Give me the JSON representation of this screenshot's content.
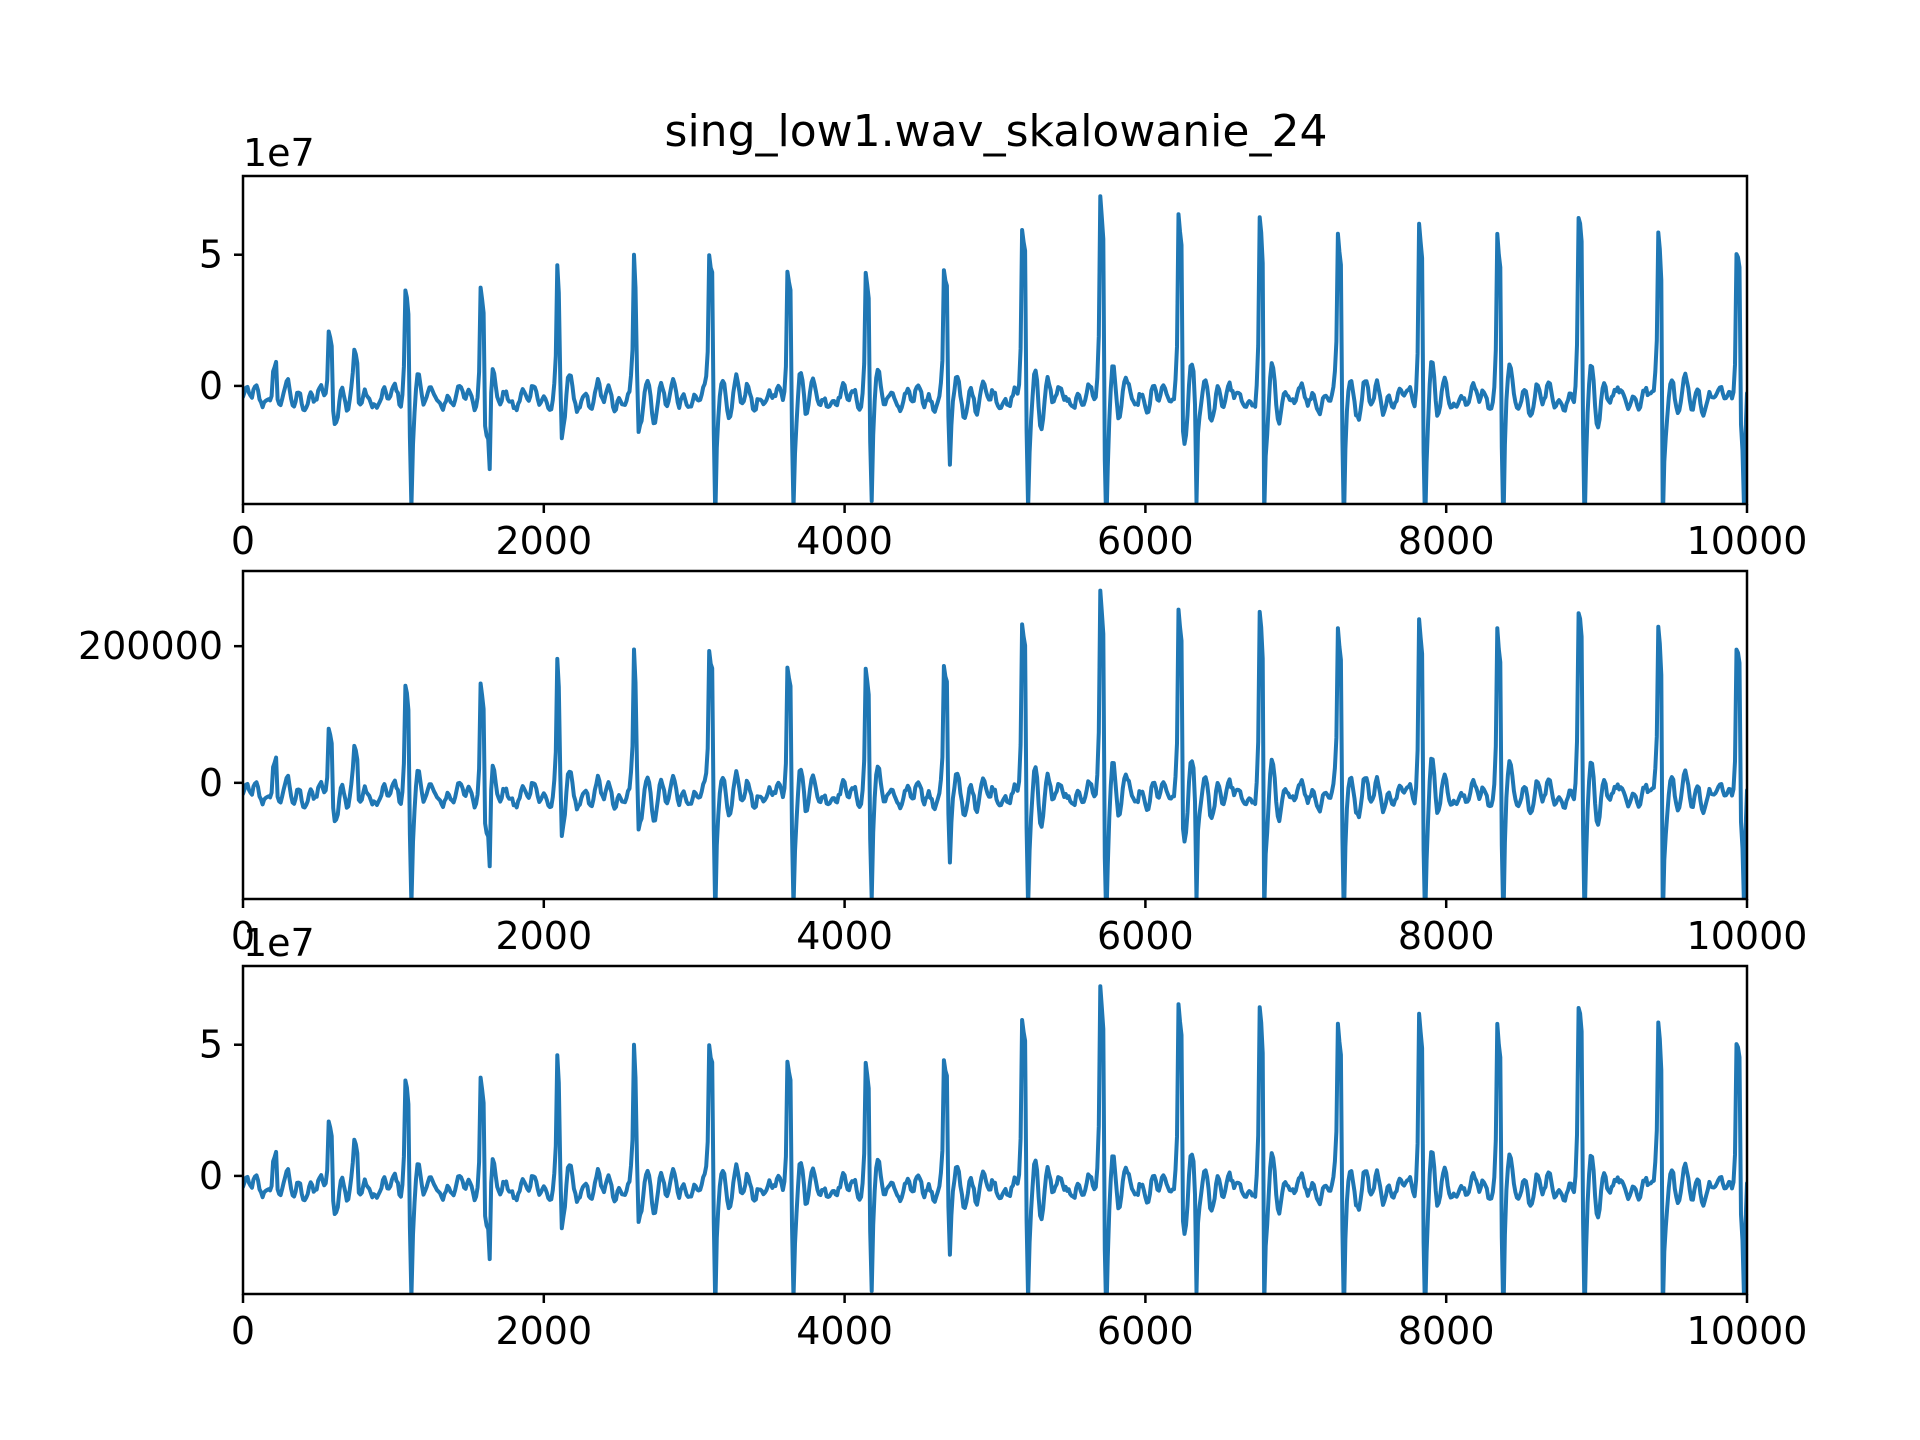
{
  "chart_data": [
    {
      "type": "line",
      "title": "sing_low1.wav_skalowanie_24",
      "offset_text": "1e7",
      "xlim": [
        0,
        10000
      ],
      "ylim": [
        -4.5,
        8.0
      ],
      "xticks": [
        0,
        2000,
        4000,
        6000,
        8000,
        10000
      ],
      "xtick_labels": [
        "0",
        "2000",
        "4000",
        "6000",
        "8000",
        "10000"
      ],
      "yticks": [
        0,
        5
      ],
      "ytick_labels": [
        "0",
        "5"
      ],
      "grid": false,
      "color": "#1f77b4",
      "peaks": [
        {
          "x": 200,
          "y": 1.5
        },
        {
          "x": 570,
          "y": 2.3
        },
        {
          "x": 740,
          "y": 1.4
        },
        {
          "x": 1080,
          "y": 4.1
        },
        {
          "x": 1580,
          "y": 4.2
        },
        {
          "x": 2090,
          "y": 5.0
        },
        {
          "x": 2600,
          "y": 5.3
        },
        {
          "x": 3100,
          "y": 5.5
        },
        {
          "x": 3620,
          "y": 4.9
        },
        {
          "x": 4140,
          "y": 4.8
        },
        {
          "x": 4660,
          "y": 4.9
        },
        {
          "x": 5180,
          "y": 6.1
        },
        {
          "x": 5700,
          "y": 7.5
        },
        {
          "x": 6220,
          "y": 7.4
        },
        {
          "x": 6760,
          "y": 6.5
        },
        {
          "x": 7280,
          "y": 6.1
        },
        {
          "x": 7820,
          "y": 6.6
        },
        {
          "x": 8340,
          "y": 6.3
        },
        {
          "x": 8880,
          "y": 6.6
        },
        {
          "x": 9410,
          "y": 6.4
        },
        {
          "x": 9930,
          "y": 6.0
        }
      ],
      "troughs": [
        {
          "x": 1120,
          "y": -2.6
        },
        {
          "x": 1640,
          "y": -2.6
        },
        {
          "x": 2110,
          "y": -3.4
        },
        {
          "x": 2620,
          "y": -3.5
        },
        {
          "x": 3140,
          "y": -3.3
        },
        {
          "x": 3660,
          "y": -2.5
        },
        {
          "x": 4180,
          "y": -2.5
        },
        {
          "x": 4700,
          "y": -1.8
        },
        {
          "x": 5220,
          "y": -2.7
        },
        {
          "x": 5740,
          "y": -3.6
        },
        {
          "x": 6340,
          "y": -3.8
        },
        {
          "x": 6790,
          "y": -3.5
        },
        {
          "x": 7320,
          "y": -3.5
        },
        {
          "x": 7860,
          "y": -3.1
        },
        {
          "x": 8380,
          "y": -3.4
        },
        {
          "x": 8920,
          "y": -3.3
        },
        {
          "x": 9440,
          "y": -3.5
        },
        {
          "x": 9980,
          "y": -2.6
        }
      ]
    },
    {
      "type": "line",
      "xlim": [
        0,
        10000
      ],
      "ylim": [
        -170000,
        310000
      ],
      "xticks": [
        0,
        2000,
        4000,
        6000,
        8000,
        10000
      ],
      "xtick_labels": [
        "0",
        "2000",
        "4000",
        "6000",
        "8000",
        "10000"
      ],
      "yticks": [
        0,
        200000
      ],
      "ytick_labels": [
        "0",
        "200000"
      ],
      "grid": false,
      "color": "#1f77b4",
      "peaks": [
        {
          "x": 200,
          "y": 60000
        },
        {
          "x": 570,
          "y": 88000
        },
        {
          "x": 740,
          "y": 55000
        },
        {
          "x": 1080,
          "y": 160000
        },
        {
          "x": 1580,
          "y": 163000
        },
        {
          "x": 2090,
          "y": 197000
        },
        {
          "x": 2600,
          "y": 207000
        },
        {
          "x": 3100,
          "y": 213000
        },
        {
          "x": 3620,
          "y": 190000
        },
        {
          "x": 4140,
          "y": 186000
        },
        {
          "x": 4660,
          "y": 190000
        },
        {
          "x": 5180,
          "y": 238000
        },
        {
          "x": 5700,
          "y": 292000
        },
        {
          "x": 6220,
          "y": 287000
        },
        {
          "x": 6760,
          "y": 253000
        },
        {
          "x": 7280,
          "y": 238000
        },
        {
          "x": 7820,
          "y": 256000
        },
        {
          "x": 8340,
          "y": 246000
        },
        {
          "x": 8880,
          "y": 256000
        },
        {
          "x": 9410,
          "y": 250000
        },
        {
          "x": 9930,
          "y": 233000
        }
      ],
      "troughs": [
        {
          "x": 1120,
          "y": -100000
        },
        {
          "x": 1640,
          "y": -100000
        },
        {
          "x": 2110,
          "y": -132000
        },
        {
          "x": 2620,
          "y": -136000
        },
        {
          "x": 3140,
          "y": -128000
        },
        {
          "x": 3660,
          "y": -97000
        },
        {
          "x": 4180,
          "y": -97000
        },
        {
          "x": 4700,
          "y": -70000
        },
        {
          "x": 5220,
          "y": -105000
        },
        {
          "x": 5740,
          "y": -140000
        },
        {
          "x": 6340,
          "y": -148000
        },
        {
          "x": 6790,
          "y": -136000
        },
        {
          "x": 7320,
          "y": -136000
        },
        {
          "x": 7860,
          "y": -120000
        },
        {
          "x": 8380,
          "y": -132000
        },
        {
          "x": 8920,
          "y": -128000
        },
        {
          "x": 9440,
          "y": -136000
        },
        {
          "x": 9980,
          "y": -101000
        }
      ]
    },
    {
      "type": "line",
      "offset_text": "1e7",
      "xlim": [
        0,
        10000
      ],
      "ylim": [
        -4.5,
        8.0
      ],
      "xticks": [
        0,
        2000,
        4000,
        6000,
        8000,
        10000
      ],
      "xtick_labels": [
        "0",
        "2000",
        "4000",
        "6000",
        "8000",
        "10000"
      ],
      "yticks": [
        0,
        5
      ],
      "ytick_labels": [
        "0",
        "5"
      ],
      "grid": false,
      "color": "#1f77b4",
      "peaks": [
        {
          "x": 200,
          "y": 1.5
        },
        {
          "x": 570,
          "y": 2.3
        },
        {
          "x": 740,
          "y": 1.4
        },
        {
          "x": 1080,
          "y": 4.1
        },
        {
          "x": 1580,
          "y": 4.2
        },
        {
          "x": 2090,
          "y": 5.0
        },
        {
          "x": 2600,
          "y": 5.3
        },
        {
          "x": 3100,
          "y": 5.5
        },
        {
          "x": 3620,
          "y": 4.9
        },
        {
          "x": 4140,
          "y": 4.8
        },
        {
          "x": 4660,
          "y": 4.9
        },
        {
          "x": 5180,
          "y": 6.1
        },
        {
          "x": 5700,
          "y": 7.5
        },
        {
          "x": 6220,
          "y": 7.4
        },
        {
          "x": 6760,
          "y": 6.5
        },
        {
          "x": 7280,
          "y": 6.1
        },
        {
          "x": 7820,
          "y": 6.6
        },
        {
          "x": 8340,
          "y": 6.3
        },
        {
          "x": 8880,
          "y": 6.6
        },
        {
          "x": 9410,
          "y": 6.4
        },
        {
          "x": 9930,
          "y": 6.0
        }
      ],
      "troughs": [
        {
          "x": 1120,
          "y": -2.6
        },
        {
          "x": 1640,
          "y": -2.6
        },
        {
          "x": 2110,
          "y": -3.4
        },
        {
          "x": 2620,
          "y": -3.5
        },
        {
          "x": 3140,
          "y": -3.3
        },
        {
          "x": 3660,
          "y": -2.5
        },
        {
          "x": 4180,
          "y": -2.5
        },
        {
          "x": 4700,
          "y": -1.8
        },
        {
          "x": 5220,
          "y": -2.7
        },
        {
          "x": 5740,
          "y": -3.6
        },
        {
          "x": 6340,
          "y": -3.8
        },
        {
          "x": 6790,
          "y": -3.5
        },
        {
          "x": 7320,
          "y": -3.5
        },
        {
          "x": 7860,
          "y": -3.1
        },
        {
          "x": 8380,
          "y": -3.4
        },
        {
          "x": 8920,
          "y": -3.3
        },
        {
          "x": 9440,
          "y": -3.5
        },
        {
          "x": 9980,
          "y": -2.6
        }
      ]
    }
  ]
}
